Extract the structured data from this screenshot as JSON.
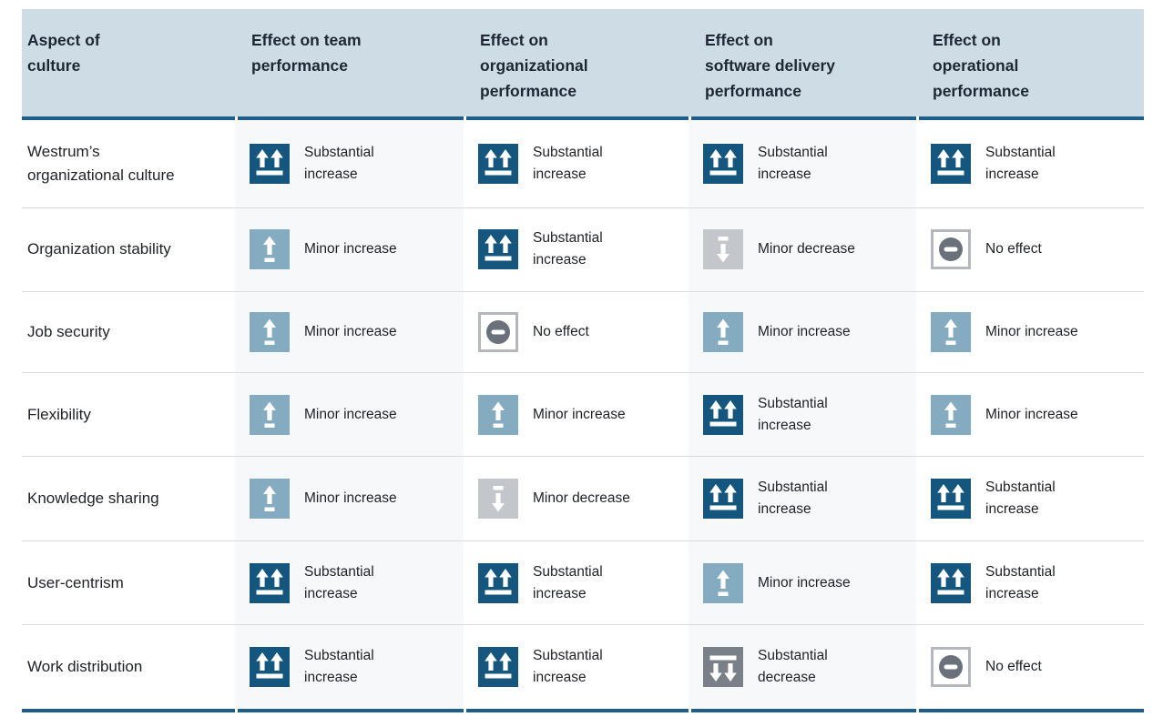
{
  "theme": {
    "page_bg": "#ffffff",
    "header_bg": "#cddce5",
    "header_text": "#1e2733",
    "text": "#1f2125",
    "rule": "#1d5f88",
    "divider": "#d8dbdf",
    "tint": "#f6f8fa",
    "ic_noeff_border": "#b4b8bd"
  },
  "table": {
    "columns": [
      {
        "label": "Aspect of\nculture"
      },
      {
        "label": "Effect on team\nperformance"
      },
      {
        "label": "Effect on\norganizational\nperformance"
      },
      {
        "label": "Effect on\nsoftware delivery\nperformance"
      },
      {
        "label": "Effect on\noperational\nperformance"
      }
    ],
    "effect_types": {
      "substantial-increase": {
        "label": "Substantial\nincrease",
        "color": "#14567d",
        "icon": "double-up-arrow-icon"
      },
      "minor-increase": {
        "label": "Minor increase",
        "color": "#84abc0",
        "icon": "single-up-arrow-icon"
      },
      "minor-decrease": {
        "label": "Minor decrease",
        "color": "#c3c7cb",
        "icon": "single-down-arrow-icon"
      },
      "substantial-decrease": {
        "label": "Substantial\ndecrease",
        "color": "#7a8087",
        "icon": "double-down-arrow-icon"
      },
      "no-effect": {
        "label": "No effect",
        "color": "#6b717a",
        "icon": "minus-circle-icon"
      }
    },
    "rows": [
      {
        "label": "Westrum’s\norganizational culture",
        "effects": [
          "substantial-increase",
          "substantial-increase",
          "substantial-increase",
          "substantial-increase"
        ]
      },
      {
        "label": "Organization stability",
        "effects": [
          "minor-increase",
          "substantial-increase",
          "minor-decrease",
          "no-effect"
        ]
      },
      {
        "label": "Job security",
        "effects": [
          "minor-increase",
          "no-effect",
          "minor-increase",
          "minor-increase"
        ]
      },
      {
        "label": "Flexibility",
        "effects": [
          "minor-increase",
          "minor-increase",
          "substantial-increase",
          "minor-increase"
        ]
      },
      {
        "label": "Knowledge sharing",
        "effects": [
          "minor-increase",
          "minor-decrease",
          "substantial-increase",
          "substantial-increase"
        ]
      },
      {
        "label": "User-centrism",
        "effects": [
          "substantial-increase",
          "substantial-increase",
          "minor-increase",
          "substantial-increase"
        ]
      },
      {
        "label": "Work distribution",
        "effects": [
          "substantial-increase",
          "substantial-increase",
          "substantial-decrease",
          "no-effect"
        ]
      }
    ]
  }
}
